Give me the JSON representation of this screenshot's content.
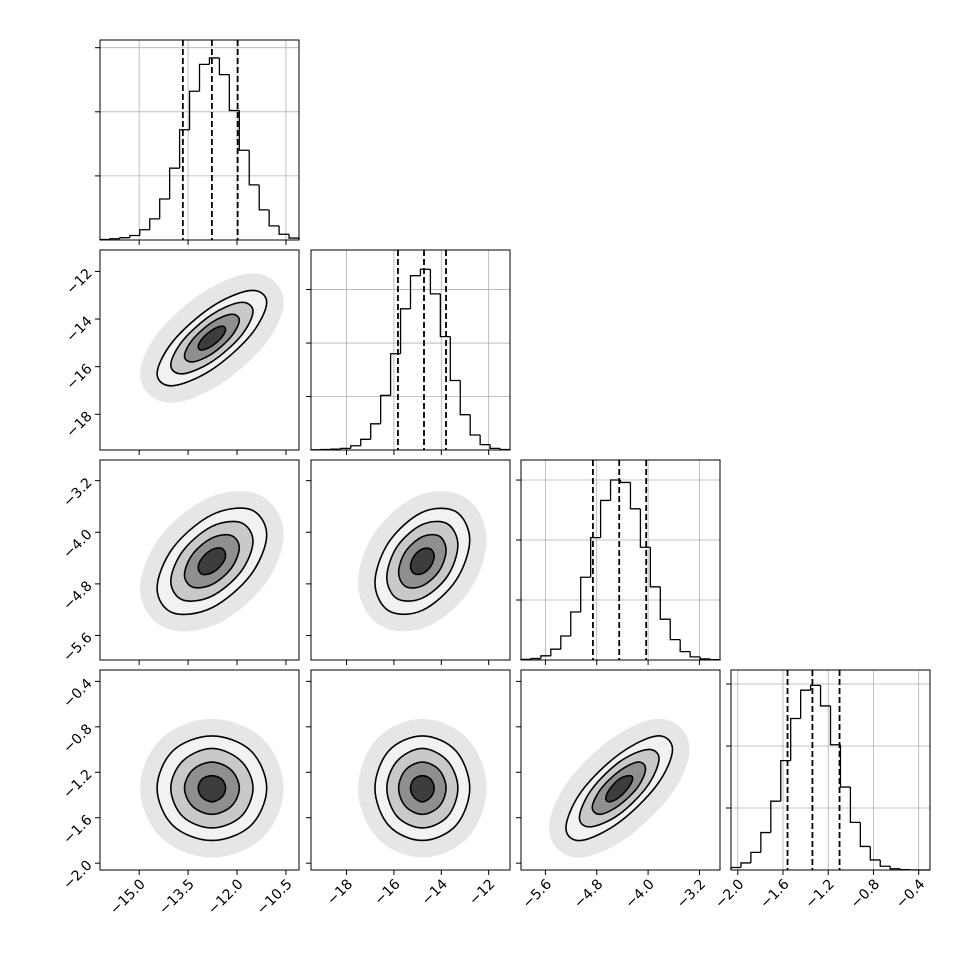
{
  "chart_data": {
    "type": "corner",
    "line_color": "#000000",
    "grid": true,
    "contour_colors": [
      "#f2f2f2",
      "#c9c9c9",
      "#8f8f8f",
      "#3d3d3d"
    ],
    "halo_color": "#dcdcdc",
    "parameters": [
      {
        "lim": [
          -16.2,
          -10.1
        ],
        "ticks": [
          {
            "value": -15,
            "label": "−15.0"
          },
          {
            "value": -13.5,
            "label": "−13.5"
          },
          {
            "value": -12,
            "label": "−12.0"
          },
          {
            "value": -10.5,
            "label": "−10.5"
          }
        ],
        "hist": {
          "bins": [
            -16.2,
            -15.895,
            -15.59,
            -15.285,
            -14.98,
            -14.675,
            -14.37,
            -14.065,
            -13.76,
            -13.455,
            -13.15,
            -12.845,
            -12.54,
            -12.235,
            -11.93,
            -11.625,
            -11.32,
            -11.015,
            -10.71,
            -10.405,
            -10.1
          ],
          "counts": [
            4,
            10,
            18,
            35,
            80,
            165,
            320,
            560,
            860,
            1160,
            1370,
            1420,
            1290,
            1010,
            700,
            430,
            235,
            110,
            45,
            15
          ],
          "ylim": [
            0,
            1560
          ],
          "yticks": [
            500,
            1000,
            1500
          ],
          "quantiles": [
            -13.66,
            -12.77,
            -11.98
          ]
        }
      },
      {
        "lim": [
          -19.5,
          -11.1
        ],
        "ticks": [
          {
            "value": -18,
            "label": "−18"
          },
          {
            "value": -16,
            "label": "−16"
          },
          {
            "value": -14,
            "label": "−14"
          },
          {
            "value": -12,
            "label": "−12"
          }
        ],
        "hist": {
          "bins": [
            -19.5,
            -19.08,
            -18.66,
            -18.24,
            -17.82,
            -17.4,
            -16.98,
            -16.56,
            -16.14,
            -15.72,
            -15.3,
            -14.88,
            -14.46,
            -14.04,
            -13.62,
            -13.2,
            -12.78,
            -12.36,
            -11.94,
            -11.52,
            -11.1
          ],
          "counts": [
            2,
            4,
            8,
            15,
            40,
            100,
            245,
            510,
            900,
            1320,
            1630,
            1690,
            1460,
            1060,
            650,
            330,
            140,
            50,
            15,
            4
          ],
          "ylim": [
            0,
            1870
          ],
          "yticks": [
            500,
            1000,
            1500
          ],
          "quantiles": [
            -15.83,
            -14.73,
            -13.8
          ]
        }
      },
      {
        "lim": [
          -5.98,
          -2.88
        ],
        "ticks": [
          {
            "value": -5.6,
            "label": "−5.6"
          },
          {
            "value": -4.8,
            "label": "−4.8"
          },
          {
            "value": -4,
            "label": "−4.0"
          },
          {
            "value": -3.2,
            "label": "−3.2"
          }
        ],
        "hist": {
          "bins": [
            -5.98,
            -5.825,
            -5.67,
            -5.515,
            -5.36,
            -5.205,
            -5.05,
            -4.895,
            -4.74,
            -4.585,
            -4.43,
            -4.275,
            -4.12,
            -3.965,
            -3.81,
            -3.655,
            -3.5,
            -3.345,
            -3.19,
            -3.035,
            -2.88
          ],
          "counts": [
            5,
            12,
            35,
            90,
            200,
            400,
            690,
            1020,
            1330,
            1500,
            1480,
            1260,
            940,
            610,
            340,
            170,
            70,
            26,
            9,
            3
          ],
          "ylim": [
            0,
            1667
          ],
          "yticks": [
            500,
            1000,
            1500
          ],
          "quantiles": [
            -4.86,
            -4.45,
            -4.03
          ]
        }
      },
      {
        "lim": [
          -2.06,
          -0.3
        ],
        "ticks": [
          {
            "value": -2,
            "label": "−2.0"
          },
          {
            "value": -1.6,
            "label": "−1.6"
          },
          {
            "value": -1.2,
            "label": "−1.2"
          },
          {
            "value": -0.8,
            "label": "−0.8"
          },
          {
            "value": -0.4,
            "label": "−0.4"
          }
        ],
        "hist": {
          "bins": [
            -2.06,
            -1.972,
            -1.884,
            -1.796,
            -1.708,
            -1.62,
            -1.532,
            -1.444,
            -1.356,
            -1.268,
            -1.18,
            -1.092,
            -1.004,
            -0.916,
            -0.828,
            -0.74,
            -0.652,
            -0.564,
            -0.476,
            -0.388,
            -0.3
          ],
          "counts": [
            20,
            57,
            142,
            302,
            555,
            882,
            1222,
            1450,
            1489,
            1323,
            1010,
            669,
            384,
            190,
            81,
            30,
            10,
            3,
            1,
            0
          ],
          "ylim": [
            0,
            1613
          ],
          "yticks": [
            500,
            1000,
            1500
          ],
          "quantiles": [
            -1.56,
            -1.34,
            -1.1
          ]
        }
      }
    ],
    "pairs": [
      {
        "contours": [
          {
            "x": [
              -11.09,
              -11.58,
              -12.77,
              -13.96,
              -14.45,
              -13.96,
              -12.77,
              -11.58
            ],
            "y": [
              -13.3,
              -12.8,
              -13.48,
              -14.93,
              -16.3,
              -16.8,
              -16.12,
              -14.67
            ]
          },
          {
            "x": [
              -11.51,
              -11.88,
              -12.77,
              -13.66,
              -14.03,
              -13.66,
              -12.77,
              -11.88
            ],
            "y": [
              -13.68,
              -13.3,
              -13.81,
              -14.9,
              -15.93,
              -16.3,
              -15.79,
              -14.71
            ]
          },
          {
            "x": [
              -11.93,
              -12.18,
              -12.77,
              -13.36,
              -13.61,
              -13.36,
              -12.77,
              -12.18
            ],
            "y": [
              -14.05,
              -13.8,
              -14.14,
              -14.86,
              -15.55,
              -15.8,
              -15.46,
              -14.74
            ]
          },
          {
            "x": [
              -12.35,
              -12.47,
              -12.77,
              -13.07,
              -13.19,
              -13.07,
              -12.77,
              -12.47
            ],
            "y": [
              -14.43,
              -14.3,
              -14.47,
              -14.83,
              -15.18,
              -15.3,
              -15.13,
              -14.77
            ]
          }
        ]
      },
      {
        "contours": [
          {
            "x": [
              -11.09,
              -11.58,
              -12.77,
              -13.96,
              -14.45,
              -13.96,
              -12.77,
              -11.58
            ],
            "y": [
              -4.04,
              -3.65,
              -3.73,
              -4.24,
              -4.87,
              -5.25,
              -5.17,
              -4.66
            ]
          },
          {
            "x": [
              -11.51,
              -11.88,
              -12.77,
              -13.66,
              -14.03,
              -13.66,
              -12.77,
              -11.88
            ],
            "y": [
              -4.14,
              -3.85,
              -3.91,
              -4.29,
              -4.76,
              -5.05,
              -4.99,
              -4.61
            ]
          },
          {
            "x": [
              -11.93,
              -12.18,
              -12.77,
              -13.36,
              -13.61,
              -13.36,
              -12.77,
              -12.18
            ],
            "y": [
              -4.24,
              -4.05,
              -4.09,
              -4.34,
              -4.66,
              -4.85,
              -4.81,
              -4.56
            ]
          },
          {
            "x": [
              -12.35,
              -12.47,
              -12.77,
              -13.07,
              -13.19,
              -13.07,
              -12.77,
              -12.47
            ],
            "y": [
              -4.35,
              -4.25,
              -4.27,
              -4.4,
              -4.55,
              -4.65,
              -4.63,
              -4.5
            ]
          }
        ]
      },
      {
        "contours": [
          {
            "x": [
              -12.8,
              -13.39,
              -14.8,
              -16.21,
              -16.8,
              -16.21,
              -14.8,
              -13.39
            ],
            "y": [
              -4.12,
              -3.68,
              -3.69,
              -4.15,
              -4.78,
              -5.22,
              -5.21,
              -4.75
            ]
          },
          {
            "x": [
              -13.3,
              -13.74,
              -14.8,
              -15.86,
              -16.3,
              -15.86,
              -14.8,
              -13.74
            ],
            "y": [
              -4.2,
              -3.87,
              -3.88,
              -4.22,
              -4.7,
              -5.03,
              -5.02,
              -4.68
            ]
          },
          {
            "x": [
              -13.8,
              -14.09,
              -14.8,
              -15.51,
              -15.8,
              -15.51,
              -14.8,
              -14.09
            ],
            "y": [
              -4.28,
              -4.06,
              -4.07,
              -4.3,
              -4.62,
              -4.84,
              -4.83,
              -4.6
            ]
          },
          {
            "x": [
              -14.3,
              -14.45,
              -14.8,
              -15.15,
              -15.3,
              -15.15,
              -14.8,
              -14.45
            ],
            "y": [
              -4.37,
              -4.26,
              -4.26,
              -4.37,
              -4.53,
              -4.64,
              -4.64,
              -4.53
            ]
          }
        ]
      },
      {
        "contours": [
          {
            "x": [
              -11.09,
              -11.58,
              -12.77,
              -13.96,
              -14.45,
              -13.96,
              -12.77,
              -11.58
            ],
            "y": [
              -1.34,
              -1.01,
              -0.88,
              -1.01,
              -1.34,
              -1.67,
              -1.8,
              -1.67
            ]
          },
          {
            "x": [
              -11.51,
              -11.88,
              -12.77,
              -13.66,
              -14.03,
              -13.66,
              -12.77,
              -11.88
            ],
            "y": [
              -1.34,
              -1.1,
              -0.99,
              -1.1,
              -1.34,
              -1.59,
              -1.69,
              -1.59
            ]
          },
          {
            "x": [
              -11.93,
              -12.18,
              -12.77,
              -13.36,
              -13.61,
              -13.36,
              -12.77,
              -12.18
            ],
            "y": [
              -1.34,
              -1.18,
              -1.11,
              -1.18,
              -1.34,
              -1.5,
              -1.57,
              -1.5
            ]
          },
          {
            "x": [
              -12.35,
              -12.47,
              -12.77,
              -13.07,
              -13.19,
              -13.07,
              -12.77,
              -12.47
            ],
            "y": [
              -1.34,
              -1.26,
              -1.23,
              -1.26,
              -1.34,
              -1.42,
              -1.46,
              -1.42
            ]
          }
        ]
      },
      {
        "contours": [
          {
            "x": [
              -12.8,
              -13.39,
              -14.8,
              -16.21,
              -16.8,
              -16.21,
              -14.8,
              -13.39
            ],
            "y": [
              -1.34,
              -1.01,
              -0.88,
              -1.01,
              -1.34,
              -1.67,
              -1.8,
              -1.67
            ]
          },
          {
            "x": [
              -13.3,
              -13.74,
              -14.8,
              -15.86,
              -16.3,
              -15.86,
              -14.8,
              -13.74
            ],
            "y": [
              -1.34,
              -1.1,
              -0.99,
              -1.1,
              -1.34,
              -1.59,
              -1.69,
              -1.59
            ]
          },
          {
            "x": [
              -13.8,
              -14.09,
              -14.8,
              -15.51,
              -15.8,
              -15.51,
              -14.8,
              -14.09
            ],
            "y": [
              -1.34,
              -1.18,
              -1.11,
              -1.18,
              -1.34,
              -1.5,
              -1.57,
              -1.5
            ]
          },
          {
            "x": [
              -14.3,
              -14.45,
              -14.8,
              -15.15,
              -15.3,
              -15.15,
              -14.8,
              -14.45
            ],
            "y": [
              -1.34,
              -1.26,
              -1.23,
              -1.26,
              -1.34,
              -1.42,
              -1.46,
              -1.42
            ]
          }
        ]
      },
      {
        "contours": [
          {
            "x": [
              -3.62,
              -3.86,
              -4.45,
              -5.04,
              -5.28,
              -5.04,
              -4.45,
              -3.86
            ],
            "y": [
              -1.0,
              -0.88,
              -1.04,
              -1.37,
              -1.69,
              -1.8,
              -1.64,
              -1.31
            ]
          },
          {
            "x": [
              -3.83,
              -4.01,
              -4.45,
              -4.89,
              -5.07,
              -4.89,
              -4.45,
              -4.01
            ],
            "y": [
              -1.08,
              -1.0,
              -1.11,
              -1.36,
              -1.6,
              -1.68,
              -1.57,
              -1.32
            ]
          },
          {
            "x": [
              -4.04,
              -4.16,
              -4.45,
              -4.74,
              -4.87,
              -4.74,
              -4.45,
              -4.16
            ],
            "y": [
              -1.17,
              -1.11,
              -1.19,
              -1.35,
              -1.51,
              -1.57,
              -1.49,
              -1.33
            ]
          },
          {
            "x": [
              -4.24,
              -4.3,
              -4.45,
              -4.6,
              -4.66,
              -4.6,
              -4.45,
              -4.3
            ],
            "y": [
              -1.25,
              -1.23,
              -1.26,
              -1.35,
              -1.43,
              -1.46,
              -1.42,
              -1.33
            ]
          }
        ]
      }
    ]
  }
}
